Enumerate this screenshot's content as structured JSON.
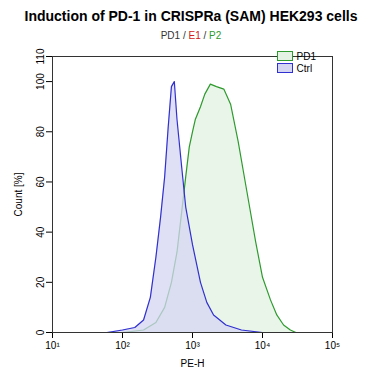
{
  "chart_data": {
    "type": "area",
    "title": "Induction of PD-1 in CRISPRa (SAM) HEK293 cells",
    "subtitle": "PD1 / E1 / P2",
    "x_label": "PE-H",
    "y_label": "Count [%]",
    "log": "x",
    "grid": false,
    "legend": "top-right",
    "xlim": [
      10,
      100000
    ],
    "xticks": [
      {
        "value": 10,
        "label": "10¹"
      },
      {
        "value": 100,
        "label": "10²"
      },
      {
        "value": 1000,
        "label": "10³"
      },
      {
        "value": 10000,
        "label": "10⁴"
      },
      {
        "value": 100000,
        "label": "10⁵"
      }
    ],
    "ylim": [
      0,
      110
    ],
    "yticks": [
      0,
      20,
      40,
      60,
      80,
      100,
      110
    ],
    "series": [
      {
        "name": "PD1",
        "color": "#2e9a2e",
        "x": [
          100,
          200,
          300,
          400,
          500,
          600,
          700,
          800,
          900,
          1000,
          1100,
          1300,
          1500,
          1800,
          2200,
          2800,
          3500,
          4500,
          6000,
          8000,
          10000,
          13000,
          16000,
          20000,
          25000,
          30000
        ],
        "values": [
          0,
          1,
          4,
          10,
          20,
          32,
          48,
          62,
          74,
          80,
          85,
          90,
          95,
          99,
          98,
          97,
          91,
          76,
          56,
          36,
          22,
          13,
          7,
          3,
          1,
          0
        ]
      },
      {
        "name": "Ctrl",
        "color": "#3030d0",
        "x": [
          30,
          60,
          100,
          150,
          200,
          250,
          300,
          350,
          400,
          450,
          500,
          550,
          600,
          700,
          800,
          1000,
          1300,
          1600,
          2000,
          3000,
          5000,
          10000
        ],
        "values": [
          0,
          0,
          1,
          2,
          5,
          14,
          30,
          46,
          62,
          82,
          98,
          100,
          85,
          66,
          50,
          35,
          20,
          12,
          7,
          3,
          1,
          0
        ]
      }
    ]
  }
}
